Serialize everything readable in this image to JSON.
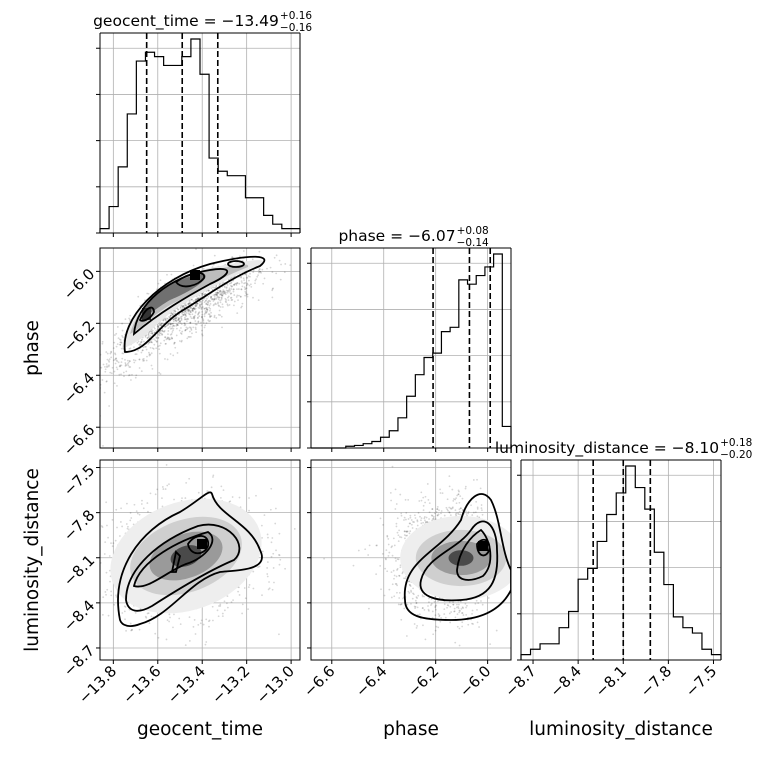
{
  "chart_data": {
    "type": "corner",
    "parameters": [
      "geocent_time",
      "phase",
      "luminosity_distance"
    ],
    "diagonal_titles": [
      {
        "name": "geocent_time",
        "median": "−13.49",
        "plus": "+0.16",
        "minus": "−0.16"
      },
      {
        "name": "phase",
        "median": "−6.07",
        "plus": "+0.08",
        "minus": "−0.14"
      },
      {
        "name": "luminosity_distance",
        "median": "−8.10",
        "plus": "+0.18",
        "minus": "−0.20"
      }
    ],
    "axis_labels": {
      "x": [
        "geocent_time",
        "phase",
        "luminosity_distance"
      ],
      "y": [
        "phase",
        "luminosity_distance"
      ]
    },
    "ranges": {
      "geocent_time": [
        -13.86,
        -12.96
      ],
      "phase": [
        -6.68,
        -5.91
      ],
      "luminosity_distance": [
        -8.78,
        -7.45
      ]
    },
    "ticks": {
      "geocent_time": {
        "values": [
          -13.8,
          -13.6,
          -13.4,
          -13.2,
          -13.0
        ],
        "labels": [
          "−13.8",
          "−13.6",
          "−13.4",
          "−13.2",
          "−13.0"
        ]
      },
      "phase": {
        "values": [
          -6.6,
          -6.4,
          -6.2,
          -6.0
        ],
        "labels": [
          "−6.6",
          "−6.4",
          "−6.2",
          "−6.0"
        ]
      },
      "luminosity_distance": {
        "values": [
          -8.7,
          -8.4,
          -8.1,
          -7.8,
          -7.5
        ],
        "labels": [
          "−8.7",
          "−8.4",
          "−8.1",
          "−7.8",
          "−7.5"
        ]
      }
    },
    "quantiles": {
      "geocent_time": [
        -13.65,
        -13.49,
        -13.33
      ],
      "phase": [
        -6.21,
        -6.07,
        -5.99
      ],
      "luminosity_distance": [
        -8.3,
        -8.1,
        -7.92
      ]
    },
    "histograms": {
      "geocent_time": {
        "edges_range": [
          -13.86,
          -12.96
        ],
        "counts": [
          1,
          6,
          15,
          27,
          39,
          41,
          40,
          38,
          38,
          40,
          44,
          36,
          17,
          14,
          13,
          13,
          8,
          8,
          4,
          2,
          1,
          1
        ]
      },
      "phase": {
        "edges_range": [
          -6.68,
          -5.91
        ],
        "counts": [
          0,
          0,
          0,
          0,
          0.4,
          0.6,
          1,
          1.5,
          2.5,
          4,
          7,
          12,
          17,
          21,
          22,
          27,
          28,
          39,
          38,
          40,
          42,
          45,
          5
        ]
      },
      "luminosity_distance": {
        "edges_range": [
          -8.78,
          -7.45
        ],
        "counts": [
          1,
          2,
          3,
          3,
          6,
          9,
          15,
          17,
          22,
          27,
          31,
          36,
          32,
          28,
          20,
          14,
          8,
          6,
          5,
          2,
          1
        ]
      }
    },
    "grid": true,
    "legend": "none"
  }
}
